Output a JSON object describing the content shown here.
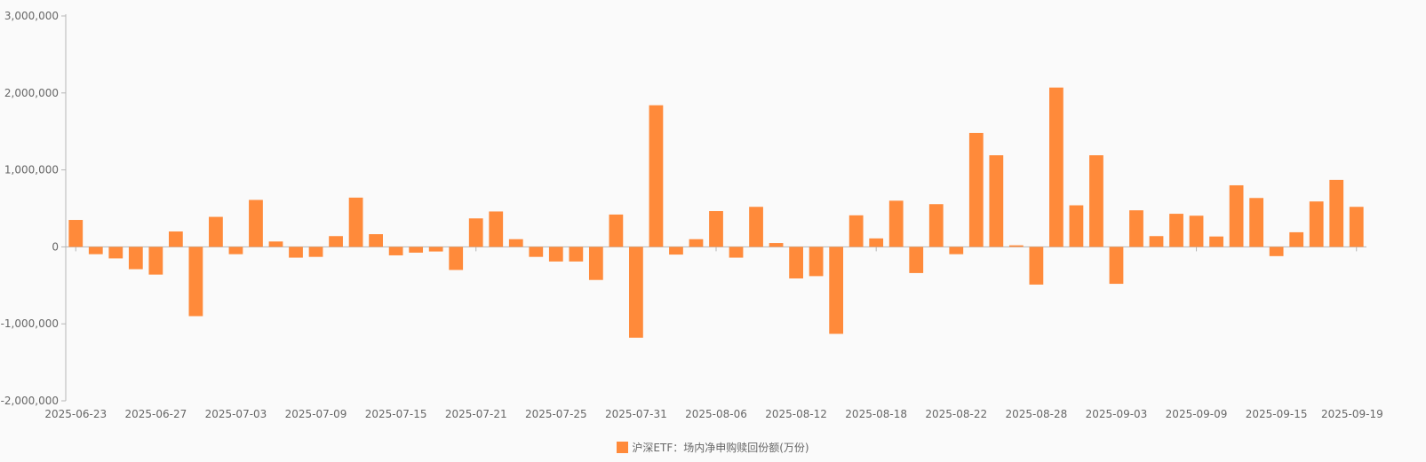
{
  "chart_data": {
    "type": "bar",
    "title": "",
    "xlabel": "",
    "ylabel": "",
    "ylim": [
      -2000000,
      3000000
    ],
    "y_ticks": [
      -2000000,
      -1000000,
      0,
      1000000,
      2000000,
      3000000
    ],
    "y_tick_labels": [
      "-2,000,000",
      "-1,000,000",
      "0",
      "1,000,000",
      "2,000,000",
      "3,000,000"
    ],
    "x_tick_labels": [
      "2025-06-23",
      "2025-06-27",
      "2025-07-03",
      "2025-07-09",
      "2025-07-15",
      "2025-07-21",
      "2025-07-25",
      "2025-07-31",
      "2025-08-06",
      "2025-08-12",
      "2025-08-18",
      "2025-08-22",
      "2025-08-28",
      "2025-09-03",
      "2025-09-09",
      "2025-09-15",
      "2025-09-19"
    ],
    "grid": false,
    "legend_position": "bottom-center",
    "color": "#ff8a3a",
    "categories": [
      "2025-06-23",
      "2025-06-24",
      "2025-06-25",
      "2025-06-26",
      "2025-06-27",
      "2025-06-30",
      "2025-07-01",
      "2025-07-02",
      "2025-07-03",
      "2025-07-04",
      "2025-07-07",
      "2025-07-08",
      "2025-07-09",
      "2025-07-10",
      "2025-07-11",
      "2025-07-14",
      "2025-07-15",
      "2025-07-16",
      "2025-07-17",
      "2025-07-18",
      "2025-07-21",
      "2025-07-22",
      "2025-07-23",
      "2025-07-24",
      "2025-07-25",
      "2025-07-28",
      "2025-07-29",
      "2025-07-30",
      "2025-07-31",
      "2025-08-01",
      "2025-08-04",
      "2025-08-05",
      "2025-08-06",
      "2025-08-07",
      "2025-08-08",
      "2025-08-11",
      "2025-08-12",
      "2025-08-13",
      "2025-08-14",
      "2025-08-15",
      "2025-08-18",
      "2025-08-19",
      "2025-08-20",
      "2025-08-21",
      "2025-08-22",
      "2025-08-25",
      "2025-08-26",
      "2025-08-27",
      "2025-08-28",
      "2025-08-29",
      "2025-09-01",
      "2025-09-02",
      "2025-09-03",
      "2025-09-04",
      "2025-09-05",
      "2025-09-08",
      "2025-09-09",
      "2025-09-10",
      "2025-09-11",
      "2025-09-12",
      "2025-09-15",
      "2025-09-16",
      "2025-09-17",
      "2025-09-18",
      "2025-09-19"
    ],
    "series": [
      {
        "name": "沪深ETF：场内净申购赎回份额(万份)",
        "values": [
          350000,
          -95000,
          -150000,
          -290000,
          -360000,
          200000,
          -900000,
          390000,
          -95000,
          610000,
          70000,
          -140000,
          -130000,
          140000,
          640000,
          165000,
          -110000,
          -75000,
          -60000,
          -300000,
          370000,
          460000,
          100000,
          -130000,
          -190000,
          -190000,
          -430000,
          420000,
          -1180000,
          1840000,
          -100000,
          100000,
          465000,
          -140000,
          520000,
          50000,
          -410000,
          -380000,
          -1130000,
          410000,
          110000,
          600000,
          -340000,
          555000,
          -95000,
          1480000,
          1190000,
          20000,
          -490000,
          2070000,
          540000,
          1190000,
          -480000,
          475000,
          140000,
          430000,
          405000,
          135000,
          800000,
          635000,
          -120000,
          190000,
          590000,
          870000,
          520000
        ]
      }
    ]
  }
}
